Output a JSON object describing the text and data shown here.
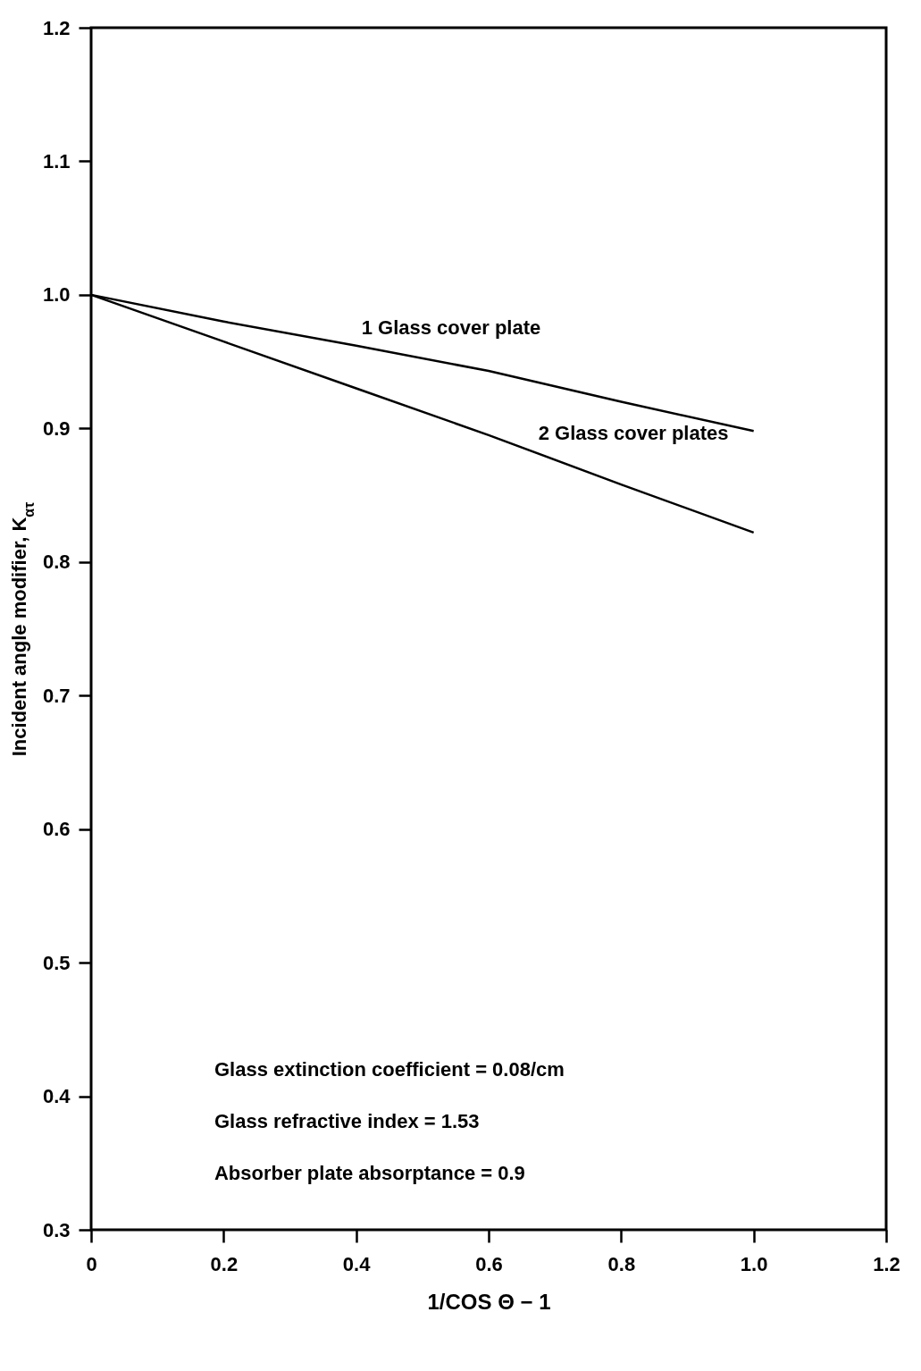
{
  "chart_data": {
    "type": "line",
    "xlabel": "1/COS Θ − 1",
    "ylabel": "Incident angle modifier, K$_{ατ}$",
    "series": [
      {
        "color": "#000000",
        "x": [
          0,
          0.2,
          0.4,
          0.6,
          0.8,
          1.0
        ],
        "values": [
          1.0,
          0.98,
          0.962,
          0.943,
          0.92,
          0.898
        ]
      },
      {
        "color": "#000000",
        "x": [
          0,
          0.2,
          0.4,
          0.6,
          0.8,
          1.0
        ],
        "values": [
          1.0,
          0.965,
          0.93,
          0.895,
          0.858,
          0.822
        ]
      }
    ],
    "annotations": [
      {
        "text": "1 Glass cover plate",
        "x": 0.4,
        "y": 0.962
      },
      {
        "text": "2 Glass cover plates",
        "x": 0.667,
        "y": 0.883
      },
      "Glass extinction coefficient = 0.08/cm",
      "Glass refractive index = 1.53",
      "Absorber plate  absorptance = 0.9"
    ],
    "xlim": [
      0,
      1.2
    ],
    "xticks": [
      0,
      0.2,
      0.4,
      0.6,
      0.8,
      {
        "value": 1.0,
        "label": "1.0"
      },
      1.2
    ],
    "ylim": [
      0.3,
      1.2
    ],
    "yticks": [
      0.3,
      0.4,
      0.5,
      0.6,
      0.7,
      0.8,
      0.9,
      {
        "value": 1.0,
        "label": "1.0"
      },
      1.1,
      1.2
    ],
    "grid": false,
    "legend": false,
    "marker": "none",
    "line_style": "solid"
  }
}
